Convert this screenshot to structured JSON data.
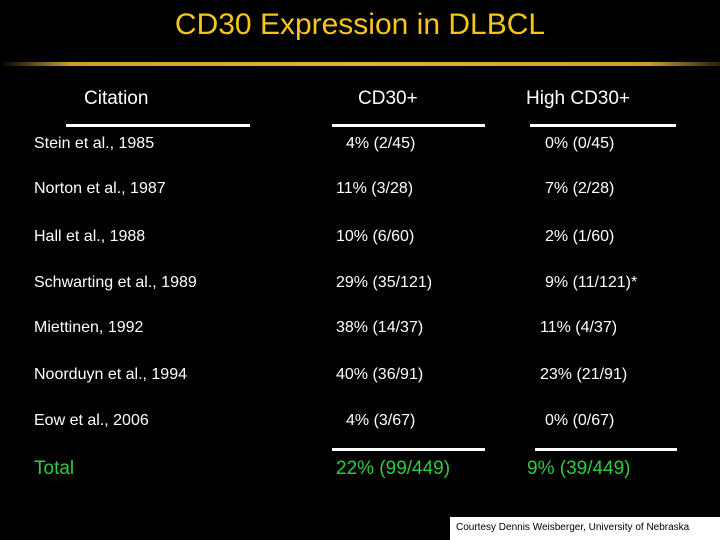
{
  "title": "CD30 Expression in DLBCL",
  "headers": {
    "citation": "Citation",
    "cd30": "CD30+",
    "high_cd30": "High CD30+"
  },
  "rows": [
    {
      "citation": "Stein et al., 1985",
      "cd30": "4%  (2/45)",
      "high": "0% (0/45)"
    },
    {
      "citation": "Norton et al., 1987",
      "cd30": "11%  (3/28)",
      "high": "7% (2/28)"
    },
    {
      "citation": "Hall et al., 1988",
      "cd30": "10%  (6/60)",
      "high": "2% (1/60)"
    },
    {
      "citation": "Schwarting et al., 1989",
      "cd30": "29%  (35/121)",
      "high": "9% (11/121)*"
    },
    {
      "citation": "Miettinen, 1992",
      "cd30": "38%  (14/37)",
      "high": "11% (4/37)"
    },
    {
      "citation": "Noorduyn et al., 1994",
      "cd30": "40%  (36/91)",
      "high": "23% (21/91)"
    },
    {
      "citation": "Eow et al., 2006",
      "cd30": "4%  (3/67)",
      "high": "0% (0/67)"
    }
  ],
  "total": {
    "label": "Total",
    "cd30": "22%  (99/449)",
    "high": "9% (39/449)"
  },
  "credit": "Courtesy Dennis Weisberger, University of Nebraska",
  "colors": {
    "background": "#000000",
    "title": "#f5c518",
    "text": "#ffffff",
    "total": "#2ecc40"
  }
}
